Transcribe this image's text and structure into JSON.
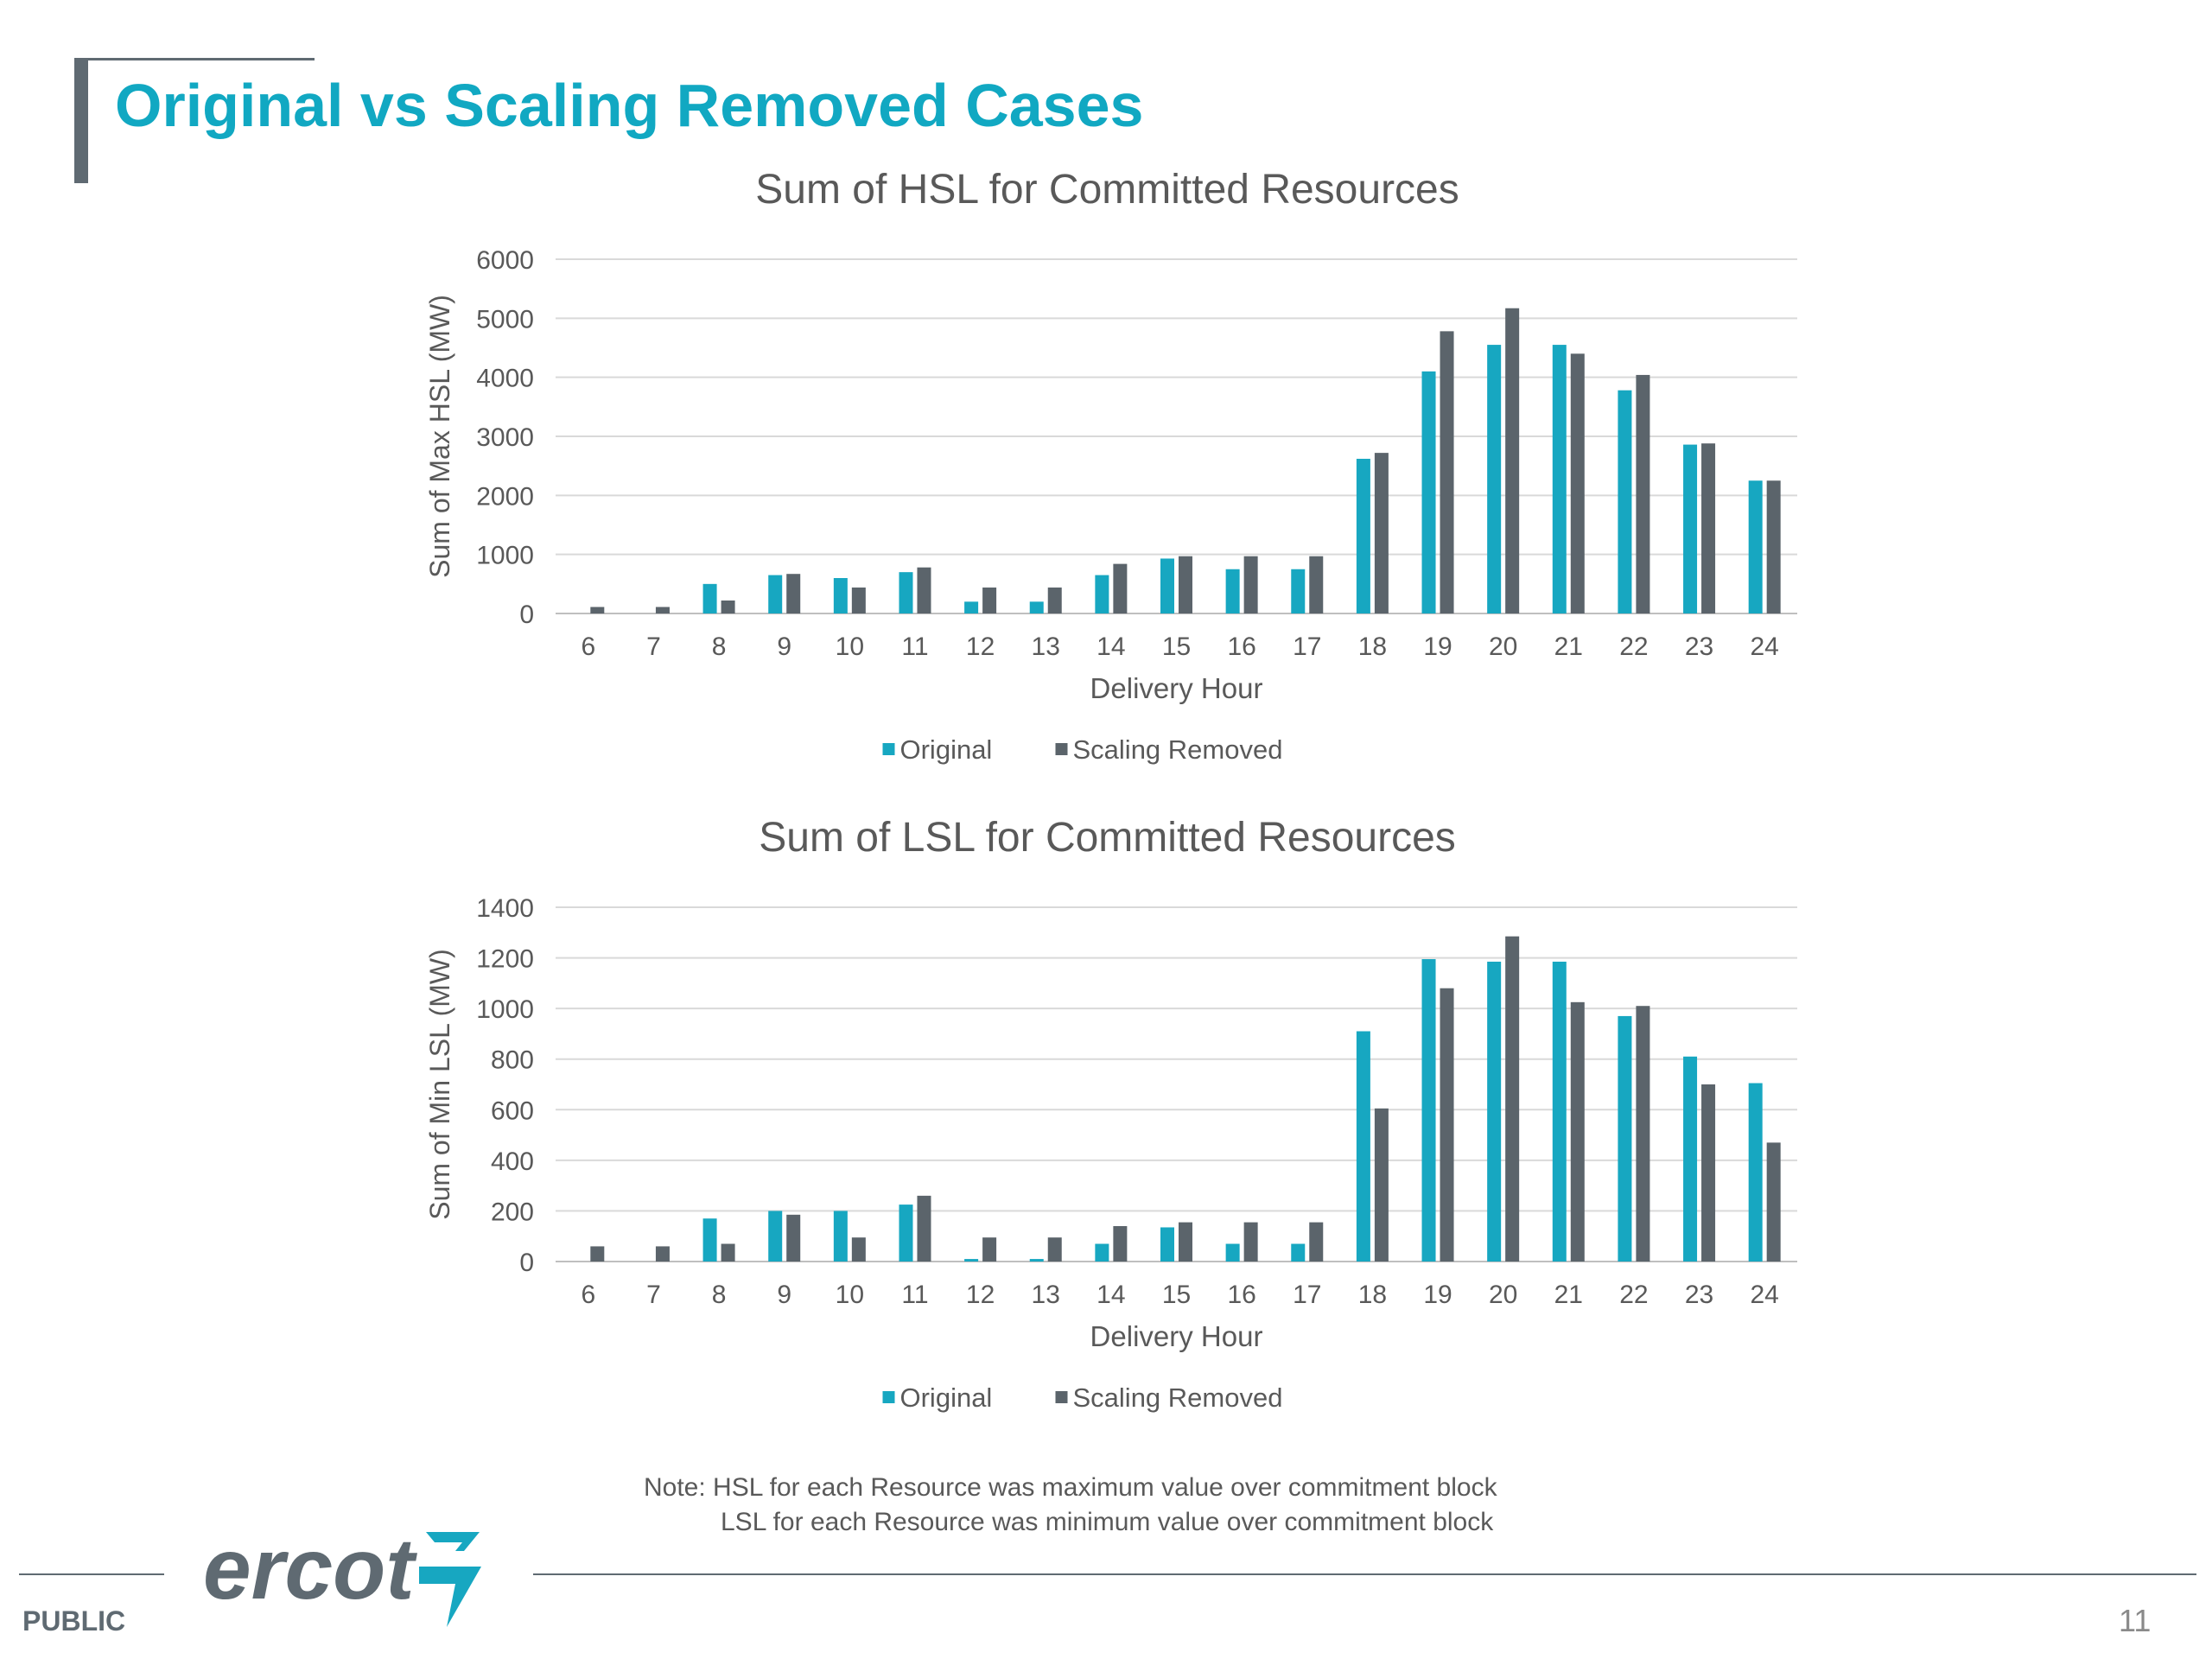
{
  "slide": {
    "title": "Original vs Scaling Removed Cases",
    "note_line1": "Note: HSL for each Resource was maximum value over commitment block",
    "note_line2": "LSL for each Resource was minimum value over commitment block",
    "footer_label": "PUBLIC",
    "page_number": "11",
    "logo_text": "ercot"
  },
  "colors": {
    "original": "#17a7c1",
    "scaling_removed": "#5b646b",
    "title": "#11a8c2",
    "grid": "#d9d9d9",
    "text": "#595959"
  },
  "chart_data": [
    {
      "type": "bar",
      "title": "Sum of HSL for Committed Resources",
      "xlabel": "Delivery Hour",
      "ylabel": "Sum of Max HSL (MW)",
      "categories": [
        "6",
        "7",
        "8",
        "9",
        "10",
        "11",
        "12",
        "13",
        "14",
        "15",
        "16",
        "17",
        "18",
        "19",
        "20",
        "21",
        "22",
        "23",
        "24"
      ],
      "ylim": [
        0,
        6000
      ],
      "yticks": [
        0,
        1000,
        2000,
        3000,
        4000,
        5000,
        6000
      ],
      "grid": true,
      "legend_position": "bottom",
      "series": [
        {
          "name": "Original",
          "values": [
            0,
            0,
            500,
            650,
            600,
            700,
            200,
            200,
            650,
            930,
            750,
            750,
            2620,
            4100,
            4550,
            4550,
            3780,
            2860,
            2250
          ]
        },
        {
          "name": "Scaling Removed",
          "values": [
            110,
            110,
            220,
            670,
            440,
            780,
            440,
            440,
            840,
            970,
            970,
            970,
            2720,
            4780,
            5170,
            4400,
            4040,
            2880,
            2250
          ]
        }
      ]
    },
    {
      "type": "bar",
      "title": "Sum of LSL for Committed Resources",
      "xlabel": "Delivery Hour",
      "ylabel": "Sum of Min LSL (MW)",
      "categories": [
        "6",
        "7",
        "8",
        "9",
        "10",
        "11",
        "12",
        "13",
        "14",
        "15",
        "16",
        "17",
        "18",
        "19",
        "20",
        "21",
        "22",
        "23",
        "24"
      ],
      "ylim": [
        0,
        1400
      ],
      "yticks": [
        0,
        200,
        400,
        600,
        800,
        1000,
        1200,
        1400
      ],
      "grid": true,
      "legend_position": "bottom",
      "series": [
        {
          "name": "Original",
          "values": [
            0,
            0,
            170,
            200,
            200,
            225,
            10,
            10,
            70,
            135,
            70,
            70,
            910,
            1195,
            1185,
            1185,
            970,
            810,
            705
          ]
        },
        {
          "name": "Scaling Removed",
          "values": [
            60,
            60,
            70,
            185,
            95,
            260,
            95,
            95,
            140,
            155,
            155,
            155,
            605,
            1080,
            1285,
            1025,
            1010,
            700,
            470
          ]
        }
      ]
    }
  ]
}
